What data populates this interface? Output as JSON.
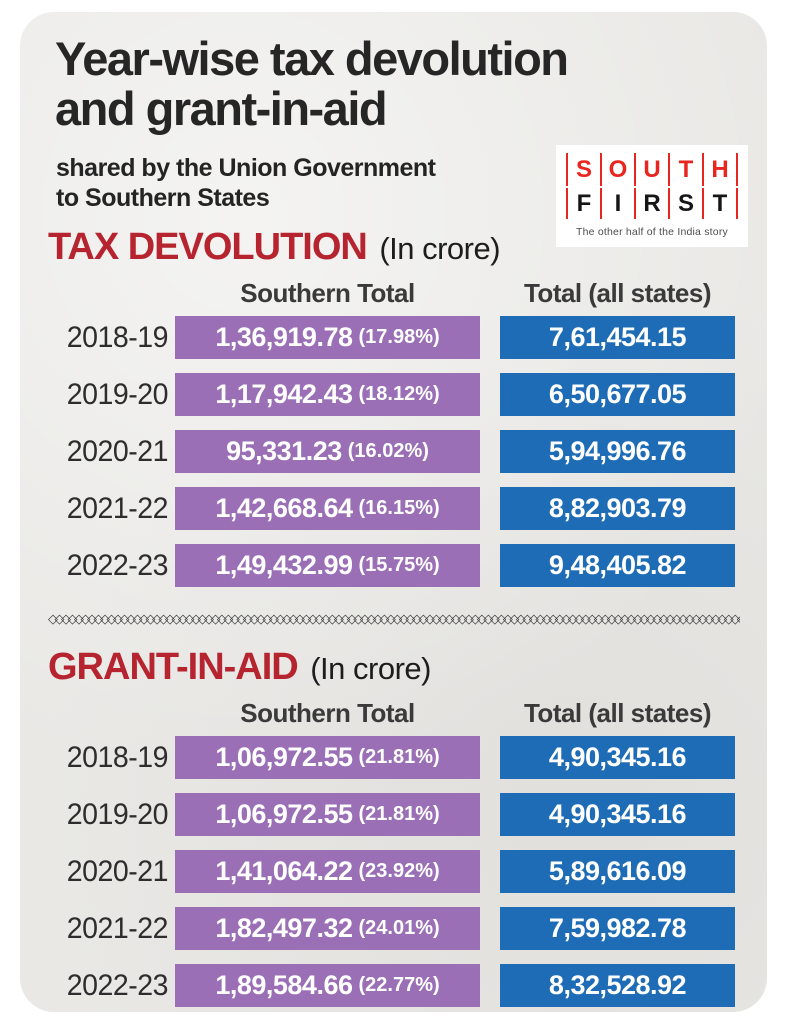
{
  "title": {
    "line1": "Year-wise tax devolution",
    "line2": "and grant-in-aid"
  },
  "subtitle": {
    "line1": "shared by the Union Government",
    "line2": "to Southern States"
  },
  "logo": {
    "south": [
      "S",
      "O",
      "U",
      "T",
      "H"
    ],
    "first": [
      "F",
      "I",
      "R",
      "S",
      "T"
    ],
    "tagline": "The other half of the India story",
    "red": "#e8251f",
    "black": "#161616"
  },
  "divider": {
    "pattern": "◇◇◇◇◇◇◇◇◇◇◇◇◇◇◇◇◇◇◇◇◇◇◇◇◇◇◇◇◇◇◇◇◇◇◇◇◇◇◇◇◇◇◇◇◇◇◇◇◇◇◇◇◇◇◇◇◇◇◇◇◇◇◇◇◇◇◇◇◇◇◇◇◇◇◇◇◇◇◇◇◇◇◇◇◇◇◇◇◇◇◇◇◇◇◇◇◇◇◇◇◇◇◇◇◇◇◇◇◇◇"
  },
  "colors": {
    "southern_bar": "#9a6fb5",
    "all_states_bar": "#1d6cb5",
    "section_heading": "#b5242f",
    "card_background": "#e9e8e5"
  },
  "sections": [
    {
      "heading": "TAX DEVOLUTION",
      "unit": "(In crore)",
      "col1": "Southern Total",
      "col2": "Total (all states)",
      "rows": [
        {
          "year": "2018-19",
          "southern": "1,36,919.78",
          "pct": "(17.98%)",
          "total": "7,61,454.15"
        },
        {
          "year": "2019-20",
          "southern": "1,17,942.43",
          "pct": "(18.12%)",
          "total": "6,50,677.05"
        },
        {
          "year": "2020-21",
          "southern": "95,331.23",
          "pct": "(16.02%)",
          "total": "5,94,996.76"
        },
        {
          "year": "2021-22",
          "southern": "1,42,668.64",
          "pct": "(16.15%)",
          "total": "8,82,903.79"
        },
        {
          "year": "2022-23",
          "southern": "1,49,432.99",
          "pct": "(15.75%)",
          "total": "9,48,405.82"
        }
      ]
    },
    {
      "heading": "GRANT-IN-AID",
      "unit": "(In crore)",
      "col1": "Southern Total",
      "col2": "Total (all states)",
      "rows": [
        {
          "year": "2018-19",
          "southern": "1,06,972.55",
          "pct": "(21.81%)",
          "total": "4,90,345.16"
        },
        {
          "year": "2019-20",
          "southern": "1,06,972.55",
          "pct": "(21.81%)",
          "total": "4,90,345.16"
        },
        {
          "year": "2020-21",
          "southern": "1,41,064.22",
          "pct": "(23.92%)",
          "total": "5,89,616.09"
        },
        {
          "year": "2021-22",
          "southern": "1,82,497.32",
          "pct": "(24.01%)",
          "total": "7,59,982.78"
        },
        {
          "year": "2022-23",
          "southern": "1,89,584.66",
          "pct": "(22.77%)",
          "total": "8,32,528.92"
        }
      ]
    }
  ],
  "chart_data": [
    {
      "type": "table",
      "title": "TAX DEVOLUTION (In crore)",
      "categories": [
        "2018-19",
        "2019-20",
        "2020-21",
        "2021-22",
        "2022-23"
      ],
      "series": [
        {
          "name": "Southern Total",
          "values": [
            136919.78,
            117942.43,
            95331.23,
            142668.64,
            149432.99
          ],
          "share_pct": [
            17.98,
            18.12,
            16.02,
            16.15,
            15.75
          ]
        },
        {
          "name": "Total (all states)",
          "values": [
            761454.15,
            650677.05,
            594996.76,
            882903.79,
            948405.82
          ]
        }
      ]
    },
    {
      "type": "table",
      "title": "GRANT-IN-AID (In crore)",
      "categories": [
        "2018-19",
        "2019-20",
        "2020-21",
        "2021-22",
        "2022-23"
      ],
      "series": [
        {
          "name": "Southern Total",
          "values": [
            106972.55,
            106972.55,
            141064.22,
            182497.32,
            189584.66
          ],
          "share_pct": [
            21.81,
            21.81,
            23.92,
            24.01,
            22.77
          ]
        },
        {
          "name": "Total (all states)",
          "values": [
            490345.16,
            490345.16,
            589616.09,
            759982.78,
            832528.92
          ]
        }
      ]
    }
  ]
}
